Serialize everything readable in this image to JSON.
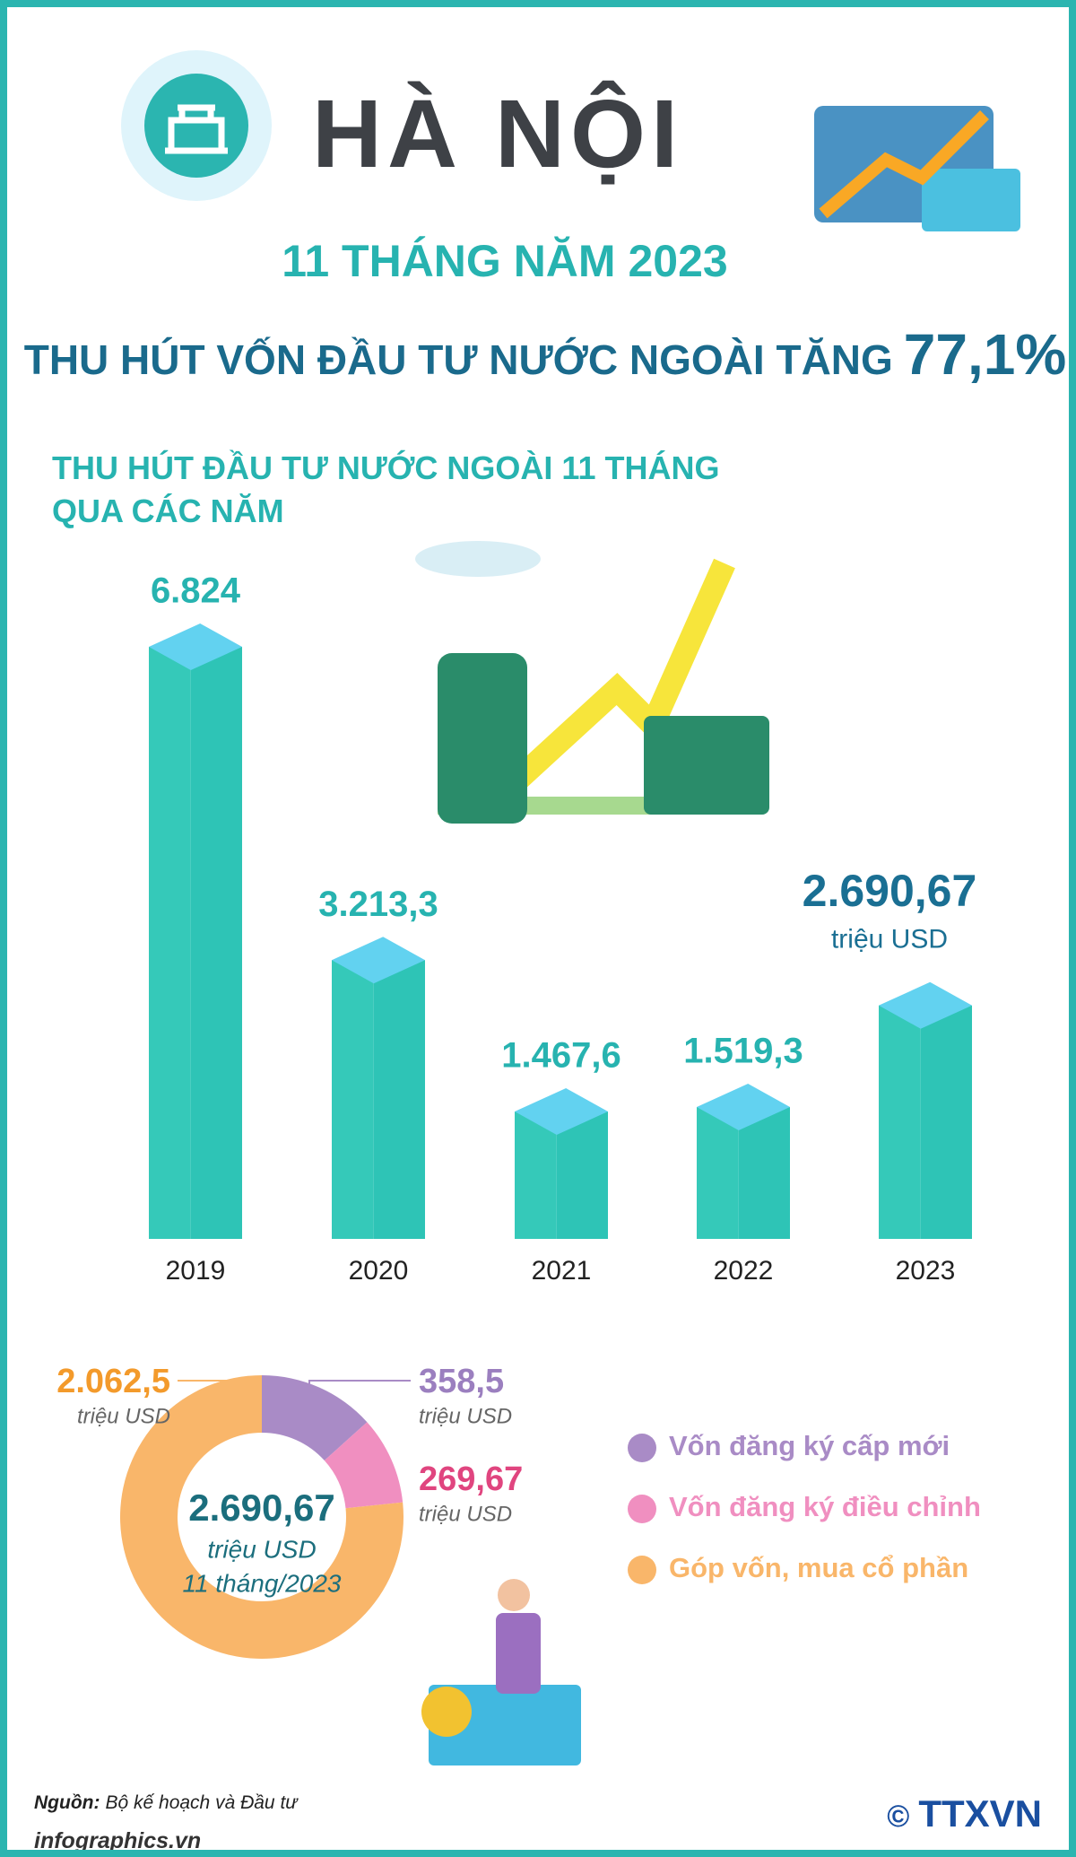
{
  "header": {
    "city": "HÀ NỘI",
    "period": "11 THÁNG NĂM 2023",
    "headline": "THU HÚT VỐN ĐẦU TƯ NƯỚC NGOÀI TĂNG",
    "highlight": "77,1%"
  },
  "chart_data": [
    {
      "type": "bar",
      "title": "THU HÚT ĐẦU TƯ NƯỚC NGOÀI 11 THÁNG QUA CÁC NĂM",
      "categories": [
        "2019",
        "2020",
        "2021",
        "2022",
        "2023"
      ],
      "values": [
        6824,
        3213.3,
        1467.6,
        1519.3,
        2690.67
      ],
      "value_labels": [
        "6.824",
        "3.213,3",
        "1.467,6",
        "1.519,3",
        "2.690,67"
      ],
      "unit_label": "triệu USD",
      "color": "#2ec4b6"
    },
    {
      "type": "donut",
      "categories": [
        "Vốn đăng ký cấp mới",
        "Vốn đăng ký điều chỉnh",
        "Góp vốn, mua cổ phần"
      ],
      "values": [
        358.5,
        269.67,
        2062.5
      ],
      "value_labels": [
        "358,5",
        "269,67",
        "2.062,5"
      ],
      "colors": [
        "#a98bc6",
        "#f08fc0",
        "#f9b66a"
      ],
      "unit_label": "triệu USD",
      "total": {
        "value": 2690.67,
        "label": "2.690,67"
      },
      "note": "11 tháng/2023"
    }
  ],
  "footer": {
    "source_label": "Nguồn:",
    "source": "Bộ kế hoạch và Đầu tư",
    "website": "infographics.vn",
    "copyright": "©",
    "agency": "TTXVN"
  }
}
